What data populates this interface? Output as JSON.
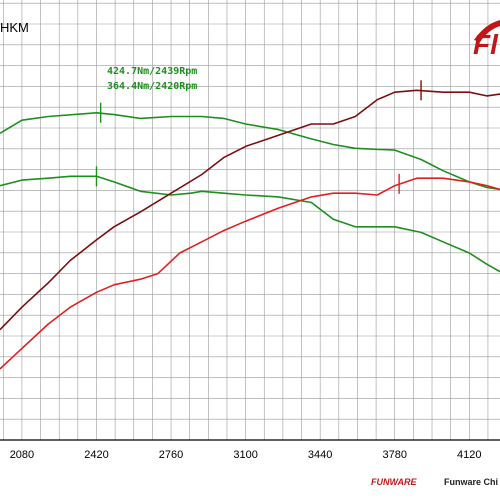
{
  "header": {
    "corner_title": "HKM",
    "brand_text": "Fl"
  },
  "footer": {
    "brand_small": "FUNWARE",
    "company_text": "Funware Chi"
  },
  "chart_data": {
    "type": "line",
    "title": "",
    "xlabel": "",
    "ylabel": "",
    "xlim": [
      1980,
      4260
    ],
    "ylim": [
      0,
      100
    ],
    "x_ticks": [
      2080,
      2420,
      2760,
      3100,
      3440,
      3780,
      4120
    ],
    "grid": true,
    "annotations": [
      {
        "text": "424.7Nm/2439Rpm",
        "x": 2439,
        "y": 87,
        "color": "#1e8f1e"
      },
      {
        "text": "364.4Nm/2420Rpm",
        "x": 2420,
        "y": 68,
        "color": "#1e8f1e"
      }
    ],
    "series": [
      {
        "color": "#1e8f1e",
        "x": [
          1980,
          2080,
          2200,
          2420,
          2500,
          2620,
          2760,
          2900,
          3000,
          3100,
          3250,
          3400,
          3500,
          3600,
          3780,
          3900,
          4000,
          4120,
          4200,
          4260
        ],
        "values": [
          82,
          85.5,
          86.5,
          87.5,
          87,
          86,
          86.5,
          86.5,
          86,
          84.5,
          83,
          80.5,
          79,
          78,
          77.5,
          75,
          72,
          69,
          67.5,
          67
        ]
      },
      {
        "color": "#1e8f1e",
        "x": [
          1980,
          2080,
          2200,
          2300,
          2420,
          2500,
          2620,
          2760,
          2850,
          2900,
          3000,
          3100,
          3250,
          3400,
          3500,
          3600,
          3780,
          3900,
          4000,
          4120,
          4200,
          4260
        ],
        "values": [
          68,
          69.5,
          70,
          70.5,
          70.5,
          69,
          66.5,
          65.5,
          66,
          66.5,
          66,
          65.5,
          65,
          63.5,
          59,
          57,
          57,
          55.5,
          53,
          50,
          47,
          45
        ]
      },
      {
        "color": "#7a1010",
        "x": [
          1980,
          2080,
          2200,
          2300,
          2420,
          2500,
          2620,
          2760,
          2900,
          3000,
          3100,
          3250,
          3400,
          3500,
          3600,
          3700,
          3780,
          3880,
          4000,
          4120,
          4200,
          4260
        ],
        "values": [
          29.5,
          35.5,
          42,
          48,
          53.5,
          57,
          61,
          66,
          71,
          75.5,
          78.5,
          81.5,
          84.5,
          84.5,
          86.5,
          91,
          93,
          93.5,
          93,
          93,
          92,
          92.5
        ]
      },
      {
        "color": "#e02020",
        "x": [
          1980,
          2080,
          2200,
          2300,
          2420,
          2500,
          2620,
          2700,
          2800,
          2900,
          3000,
          3100,
          3250,
          3400,
          3500,
          3600,
          3700,
          3780,
          3880,
          4000,
          4120,
          4200,
          4260
        ],
        "values": [
          19,
          24.5,
          31,
          35.5,
          39.5,
          41.5,
          43,
          44.5,
          50,
          53,
          56,
          58.5,
          62,
          65,
          66,
          66,
          65.5,
          68,
          70,
          70,
          69,
          68,
          67
        ]
      }
    ],
    "peak_markers": [
      {
        "x": 2439,
        "y": 87.5,
        "color": "#1e8f1e"
      },
      {
        "x": 2420,
        "y": 70.5,
        "color": "#1e8f1e"
      },
      {
        "x": 3900,
        "y": 93.5,
        "color": "#7a1010"
      },
      {
        "x": 3800,
        "y": 68.5,
        "color": "#e02020"
      }
    ]
  }
}
